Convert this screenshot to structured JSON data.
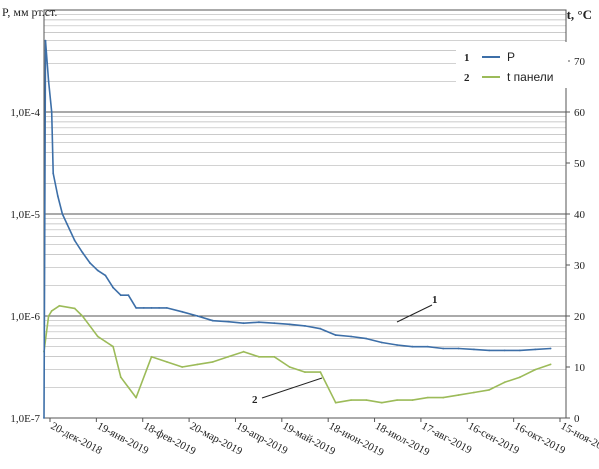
{
  "chart_data": {
    "type": "line",
    "ylabel_left": "P, мм рт.ст.",
    "ylabel_right": "t, °C",
    "left_axis": {
      "scale": "log",
      "ylim": [
        1e-07,
        0.001
      ],
      "tick_labels": [
        "1,0E-7",
        "1,0E-6",
        "1,0E-5",
        "1,0E-4"
      ]
    },
    "right_axis": {
      "scale": "linear",
      "ylim": [
        0,
        80
      ],
      "tick_labels": [
        "0",
        "10",
        "20",
        "30",
        "40",
        "50",
        "60",
        "70"
      ]
    },
    "x_tick_labels": [
      "20-дек-2018",
      "19-янв-2019",
      "18-фев-2019",
      "20-мар-2019",
      "19-апр-2019",
      "19-май-2019",
      "18-июн-2019",
      "18-июл-2019",
      "17-авг-2019",
      "16-сен-2019",
      "16-окт-2019",
      "15-ноя-2019"
    ],
    "grid": true,
    "legend_position": "top-right",
    "series": [
      {
        "name": "P",
        "number": "1",
        "axis": "left",
        "color": "#3d6fa8",
        "x": [
          0,
          1,
          3,
          5,
          6,
          9,
          12,
          15,
          20,
          25,
          30,
          35,
          40,
          45,
          50,
          55,
          60,
          65,
          70,
          75,
          80,
          90,
          100,
          110,
          120,
          130,
          140,
          150,
          160,
          170,
          180,
          190,
          200,
          210,
          220,
          230,
          240,
          250,
          260,
          270,
          280,
          290,
          300,
          310,
          320,
          330
        ],
        "values": [
          1e-07,
          0.0005,
          0.0002,
          0.0001,
          2.5e-05,
          1.5e-05,
          1e-05,
          8e-06,
          5.5e-06,
          4.2e-06,
          3.3e-06,
          2.8e-06,
          2.5e-06,
          1.9e-06,
          1.6e-06,
          1.6e-06,
          1.2e-06,
          1.2e-06,
          1.2e-06,
          1.2e-06,
          1.2e-06,
          1.1e-06,
          1e-06,
          9e-07,
          8.8e-07,
          8.5e-07,
          8.7e-07,
          8.5e-07,
          8.3e-07,
          8e-07,
          7.5e-07,
          6.5e-07,
          6.3e-07,
          6e-07,
          5.5e-07,
          5.2e-07,
          5e-07,
          5e-07,
          4.8e-07,
          4.8e-07,
          4.7e-07,
          4.6e-07,
          4.6e-07,
          4.6e-07,
          4.7e-07,
          4.8e-07
        ]
      },
      {
        "name": "t панели",
        "number": "2",
        "axis": "right",
        "color": "#9cbb59",
        "x": [
          0,
          3,
          5,
          10,
          20,
          25,
          30,
          35,
          40,
          45,
          50,
          55,
          60,
          70,
          80,
          90,
          100,
          110,
          120,
          130,
          140,
          150,
          160,
          170,
          180,
          190,
          200,
          210,
          220,
          230,
          240,
          250,
          260,
          270,
          280,
          290,
          300,
          310,
          320,
          330
        ],
        "values": [
          13,
          20,
          21,
          22,
          21.5,
          20,
          18,
          16,
          15,
          14,
          8,
          6,
          4,
          12,
          11,
          10,
          10.5,
          11,
          12,
          13,
          12,
          12,
          10,
          9,
          9,
          3,
          3.5,
          3.5,
          3,
          3.5,
          3.5,
          4,
          4,
          4.5,
          5,
          5.5,
          7,
          8,
          9.5,
          10.5
        ]
      }
    ],
    "annotations": [
      "1",
      "2"
    ]
  }
}
